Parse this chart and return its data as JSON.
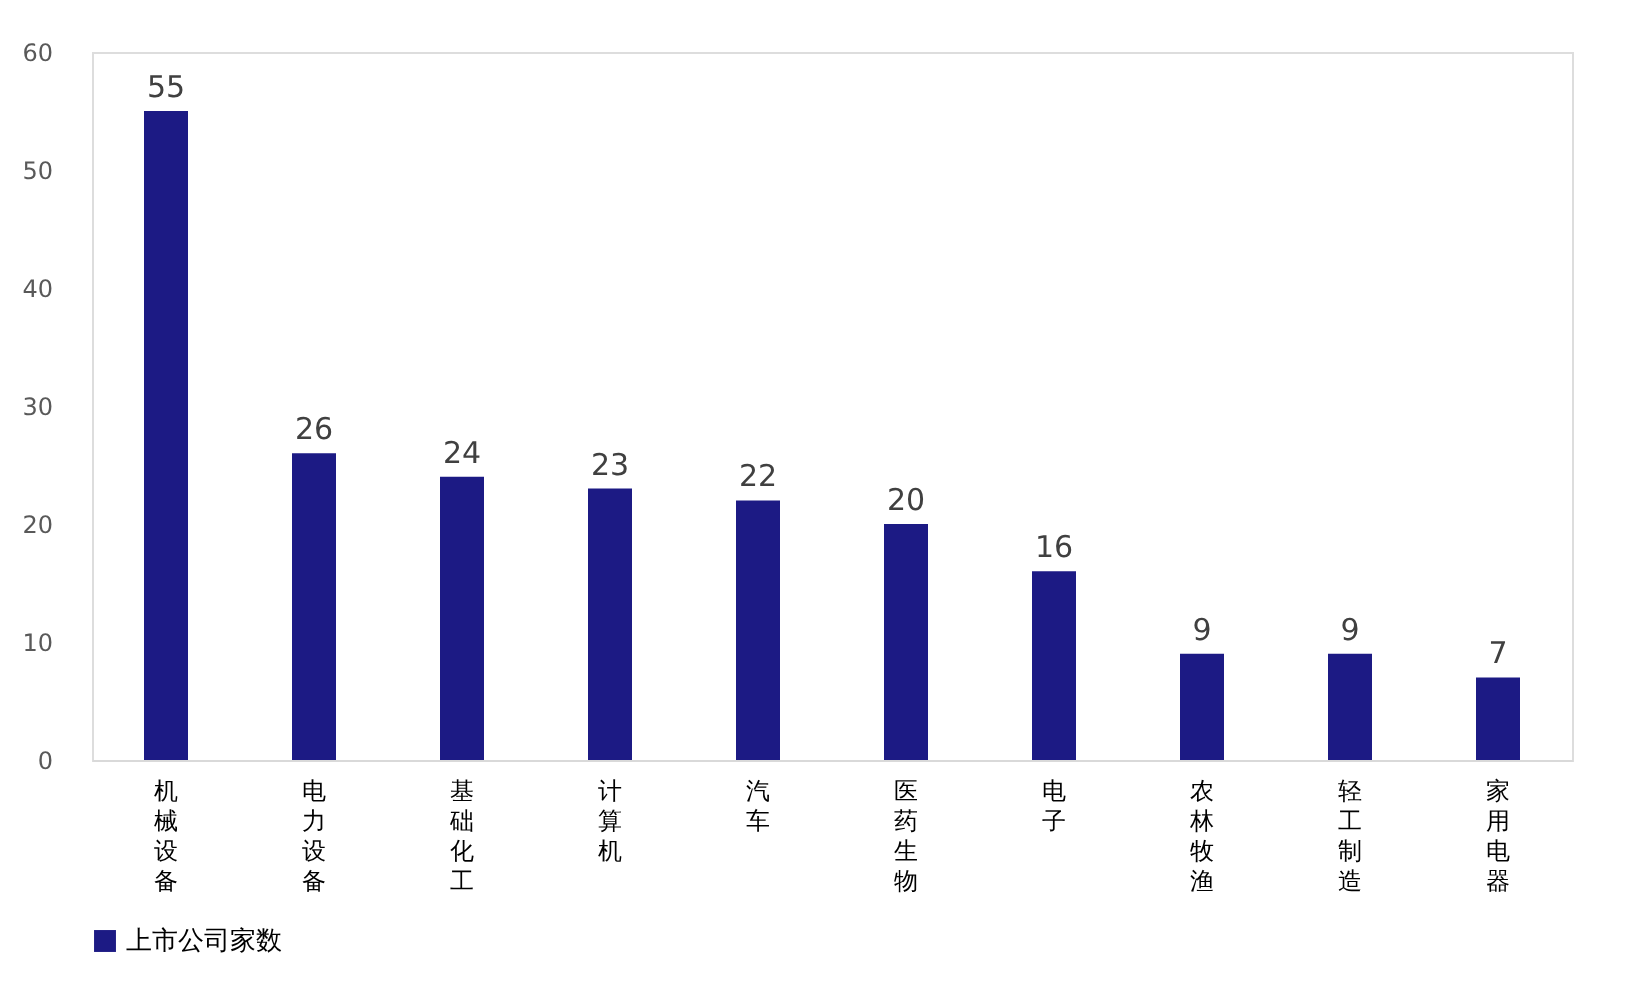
{
  "chart_data": {
    "type": "bar",
    "categories": [
      "机械设备",
      "电力设备",
      "基础化工",
      "计算机",
      "汽车",
      "医药生物",
      "电子",
      "农林牧渔",
      "轻工制造",
      "家用电器"
    ],
    "series": [
      {
        "name": "上市公司家数",
        "color": "#1c1a84",
        "values": [
          55,
          26,
          24,
          23,
          22,
          20,
          16,
          9,
          9,
          7
        ]
      }
    ],
    "ylim": [
      0,
      60
    ],
    "yticks": [
      0,
      10,
      20,
      30,
      40,
      50,
      60
    ],
    "grid": false,
    "legend": "bottom",
    "data_labels": true
  }
}
